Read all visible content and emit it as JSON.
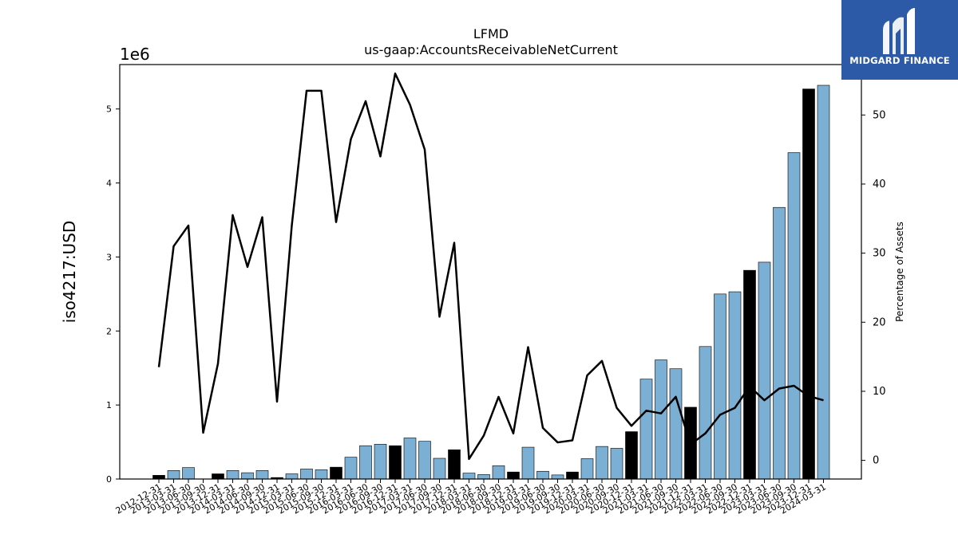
{
  "logo": {
    "text": "MIDGARD FINANCE"
  },
  "chart_data": {
    "type": "bar",
    "title": "LFMD",
    "subtitle": "us-gaap:AccountsReceivableNetCurrent",
    "ylabel": "iso4217:USD",
    "y_exponent_label": "1e6",
    "y2label": "Percentage of Assets",
    "ylim": [
      0,
      5600000
    ],
    "yticks": [
      0,
      1,
      2,
      3,
      4,
      5
    ],
    "y2lim": [
      -2.7,
      57.3
    ],
    "y2ticks": [
      0,
      10,
      20,
      30,
      40,
      50
    ],
    "grid": false,
    "colors": {
      "bar_quarter": "#7bafd4",
      "bar_annual": "#000000",
      "line": "#000000"
    },
    "categories": [
      "2012-12-31",
      "2013-03-31",
      "2013-06-30",
      "2013-09-30",
      "2013-12-31",
      "2014-03-31",
      "2014-06-30",
      "2014-09-30",
      "2014-12-31",
      "2015-03-31",
      "2015-06-30",
      "2015-09-30",
      "2015-12-31",
      "2016-03-31",
      "2016-06-30",
      "2016-09-30",
      "2016-12-31",
      "2017-03-31",
      "2017-06-30",
      "2017-09-30",
      "2017-12-31",
      "2018-03-31",
      "2018-06-30",
      "2018-09-30",
      "2018-12-31",
      "2019-03-31",
      "2019-06-30",
      "2019-09-30",
      "2019-12-31",
      "2020-03-31",
      "2020-06-30",
      "2020-09-30",
      "2020-12-31",
      "2021-03-31",
      "2021-06-30",
      "2021-09-30",
      "2021-12-31",
      "2022-03-31",
      "2022-06-30",
      "2022-09-30",
      "2022-12-31",
      "2023-03-31",
      "2023-06-30",
      "2023-09-30",
      "2023-12-31",
      "2024-03-31"
    ],
    "series": [
      {
        "type": "bar",
        "values": [
          50000,
          115000,
          155000,
          0,
          70000,
          115000,
          85000,
          115000,
          20000,
          70000,
          135000,
          125000,
          160000,
          295000,
          450000,
          470000,
          450000,
          555000,
          510000,
          280000,
          395000,
          80000,
          60000,
          180000,
          95000,
          430000,
          105000,
          55000,
          95000,
          275000,
          440000,
          415000,
          640000,
          1350000,
          1610000,
          1490000,
          970000,
          1790000,
          2500000,
          2530000,
          2820000,
          2930000,
          3670000,
          4410000,
          5270000,
          5320000
        ],
        "annual": [
          true,
          false,
          false,
          false,
          true,
          false,
          false,
          false,
          true,
          false,
          false,
          false,
          true,
          false,
          false,
          false,
          true,
          false,
          false,
          false,
          true,
          false,
          false,
          false,
          true,
          false,
          false,
          false,
          true,
          false,
          false,
          false,
          true,
          false,
          false,
          false,
          true,
          false,
          false,
          false,
          true,
          false,
          false,
          false,
          true,
          false
        ]
      },
      {
        "type": "line",
        "axis": "right",
        "values": [
          13.5,
          31,
          34,
          4,
          14,
          35.5,
          28,
          35.2,
          8.5,
          34,
          53.5,
          53.5,
          34.5,
          46.5,
          52,
          44,
          56,
          51.5,
          45,
          20.8,
          31.5,
          0.2,
          3.6,
          9.2,
          3.9,
          16.4,
          4.7,
          2.6,
          2.9,
          12.3,
          14.4,
          7.6,
          5,
          7.2,
          6.8,
          9.2,
          2.3,
          3.9,
          6.6,
          7.6,
          10.7,
          8.7,
          10.4,
          10.8,
          9.3,
          8.7
        ]
      }
    ]
  }
}
